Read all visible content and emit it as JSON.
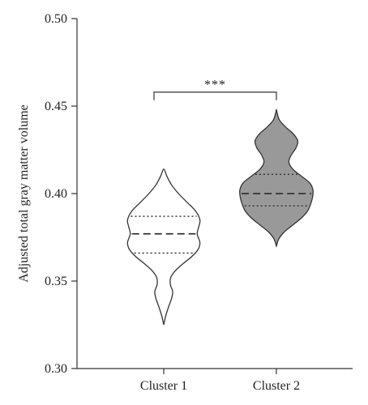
{
  "chart_data": {
    "type": "violin",
    "ylabel": "Adjusted total gray matter volume",
    "xlabel": "",
    "ylim": [
      0.3,
      0.5
    ],
    "yticks": [
      "0.30",
      "0.35",
      "0.40",
      "0.45",
      "0.50"
    ],
    "categories": [
      "Cluster 1",
      "Cluster 2"
    ],
    "series": [
      {
        "category": "Cluster 1",
        "fill": "#ffffff",
        "min": 0.325,
        "max": 0.414,
        "q1": 0.366,
        "median": 0.377,
        "q3": 0.387,
        "density": [
          [
            0.325,
            0.0
          ],
          [
            0.33,
            0.05
          ],
          [
            0.335,
            0.12
          ],
          [
            0.34,
            0.2
          ],
          [
            0.344,
            0.23
          ],
          [
            0.348,
            0.17
          ],
          [
            0.352,
            0.18
          ],
          [
            0.356,
            0.3
          ],
          [
            0.36,
            0.5
          ],
          [
            0.364,
            0.72
          ],
          [
            0.368,
            0.88
          ],
          [
            0.372,
            0.93
          ],
          [
            0.377,
            0.86
          ],
          [
            0.381,
            0.9
          ],
          [
            0.385,
            0.93
          ],
          [
            0.39,
            0.82
          ],
          [
            0.395,
            0.6
          ],
          [
            0.4,
            0.38
          ],
          [
            0.405,
            0.2
          ],
          [
            0.41,
            0.08
          ],
          [
            0.414,
            0.0
          ]
        ]
      },
      {
        "category": "Cluster 2",
        "fill": "#999999",
        "min": 0.37,
        "max": 0.448,
        "q1": 0.393,
        "median": 0.4,
        "q3": 0.411,
        "density": [
          [
            0.37,
            0.0
          ],
          [
            0.374,
            0.06
          ],
          [
            0.378,
            0.2
          ],
          [
            0.382,
            0.42
          ],
          [
            0.386,
            0.64
          ],
          [
            0.39,
            0.8
          ],
          [
            0.394,
            0.88
          ],
          [
            0.398,
            0.93
          ],
          [
            0.402,
            0.94
          ],
          [
            0.406,
            0.86
          ],
          [
            0.41,
            0.64
          ],
          [
            0.414,
            0.42
          ],
          [
            0.418,
            0.32
          ],
          [
            0.422,
            0.38
          ],
          [
            0.426,
            0.5
          ],
          [
            0.43,
            0.55
          ],
          [
            0.434,
            0.44
          ],
          [
            0.438,
            0.24
          ],
          [
            0.442,
            0.08
          ],
          [
            0.446,
            0.02
          ],
          [
            0.448,
            0.0
          ]
        ]
      }
    ],
    "significance": {
      "label": "***",
      "y": 0.458,
      "between": [
        "Cluster 1",
        "Cluster 2"
      ]
    }
  }
}
